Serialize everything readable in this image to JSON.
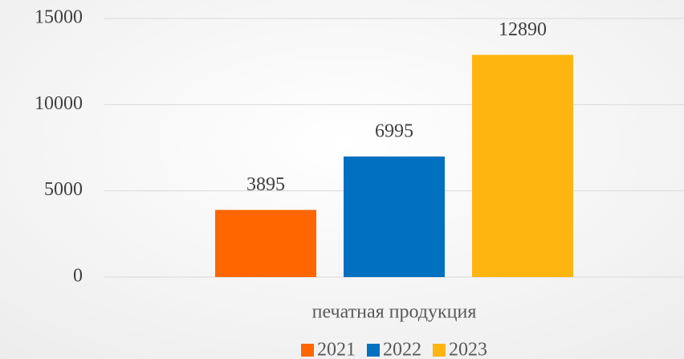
{
  "chart_data": {
    "type": "bar",
    "categories": [
      "печатная продукция"
    ],
    "series": [
      {
        "name": "2021",
        "color": "#ff6600",
        "values": [
          3895
        ]
      },
      {
        "name": "2022",
        "color": "#0070c0",
        "values": [
          6995
        ]
      },
      {
        "name": "2023",
        "color": "#ffb50f",
        "values": [
          12890
        ]
      }
    ],
    "ylim": [
      0,
      15000
    ],
    "yticks": [
      0,
      5000,
      10000,
      15000
    ],
    "grid": true,
    "legend": "bottom"
  }
}
